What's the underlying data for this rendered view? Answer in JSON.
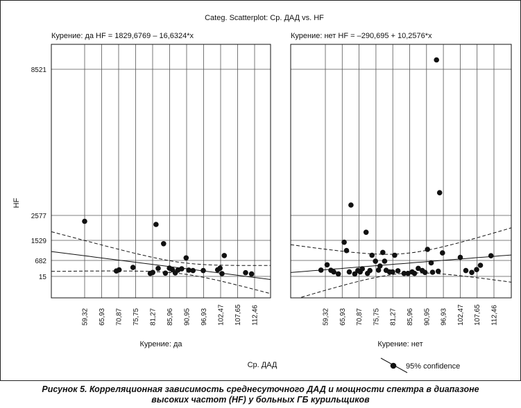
{
  "chart_data": {
    "type": "scatter",
    "title": "Categ. Scatterplot: Ср. ДАД vs. HF",
    "xlabel": "Ср. ДАД",
    "ylabel": "HF",
    "y_ticks": [
      "8521",
      "2577",
      "1529",
      "682",
      "15"
    ],
    "y_tick_values": [
      8521,
      2577,
      1529,
      682,
      15
    ],
    "x_ticks": [
      "59,32",
      "65,93",
      "70,87",
      "75,75",
      "81,27",
      "85,96",
      "90,95",
      "96,93",
      "102,47",
      "107,65",
      "112,46"
    ],
    "legend": "95% confidence",
    "grid": true,
    "panels": [
      {
        "header": "Курение: да HF = 1829,6769 – 16,6324*x",
        "category": "Курение: да",
        "intercept": 1829.6769,
        "slope": -16.6324,
        "points": [
          [
            59.32,
            2330
          ],
          [
            70.2,
            240
          ],
          [
            71.0,
            290
          ],
          [
            75.0,
            390
          ],
          [
            80.5,
            140
          ],
          [
            81.3,
            180
          ],
          [
            82.2,
            2200
          ],
          [
            82.8,
            350
          ],
          [
            84.3,
            1390
          ],
          [
            84.8,
            150
          ],
          [
            85.9,
            360
          ],
          [
            86.8,
            290
          ],
          [
            87.6,
            160
          ],
          [
            88.4,
            280
          ],
          [
            89.5,
            330
          ],
          [
            90.8,
            790
          ],
          [
            91.7,
            280
          ],
          [
            93.2,
            260
          ],
          [
            96.8,
            260
          ],
          [
            101.5,
            290
          ],
          [
            102.3,
            360
          ],
          [
            102.9,
            130
          ],
          [
            103.6,
            890
          ],
          [
            109.9,
            170
          ],
          [
            111.6,
            120
          ]
        ]
      },
      {
        "header": "Курение: нет HF = –290,695 + 10,2576*x",
        "category": "Курение: нет",
        "intercept": -290.695,
        "slope": 10.2576,
        "points": [
          [
            57.6,
            280
          ],
          [
            60.0,
            500
          ],
          [
            61.5,
            270
          ],
          [
            62.6,
            200
          ],
          [
            64.4,
            120
          ],
          [
            66.5,
            1450
          ],
          [
            67.2,
            1100
          ],
          [
            68.5,
            3000
          ],
          [
            68.0,
            200
          ],
          [
            69.6,
            120
          ],
          [
            70.5,
            260
          ],
          [
            71.2,
            200
          ],
          [
            71.8,
            330
          ],
          [
            72.9,
            1870
          ],
          [
            73.3,
            140
          ],
          [
            74.0,
            260
          ],
          [
            74.6,
            900
          ],
          [
            75.6,
            650
          ],
          [
            76.6,
            280
          ],
          [
            77.1,
            450
          ],
          [
            78.0,
            1020
          ],
          [
            78.6,
            650
          ],
          [
            79.1,
            270
          ],
          [
            80.2,
            200
          ],
          [
            81.2,
            200
          ],
          [
            81.8,
            900
          ],
          [
            82.7,
            250
          ],
          [
            84.4,
            140
          ],
          [
            85.5,
            140
          ],
          [
            86.7,
            200
          ],
          [
            87.4,
            140
          ],
          [
            88.5,
            350
          ],
          [
            89.7,
            260
          ],
          [
            90.5,
            180
          ],
          [
            91.3,
            1150
          ],
          [
            92.6,
            580
          ],
          [
            93.1,
            190
          ],
          [
            94.5,
            8900
          ],
          [
            95.1,
            230
          ],
          [
            95.6,
            3500
          ],
          [
            96.6,
            1000
          ],
          [
            102.5,
            810
          ],
          [
            104.2,
            260
          ],
          [
            106.0,
            180
          ],
          [
            107.5,
            300
          ],
          [
            108.6,
            480
          ],
          [
            111.6,
            880
          ]
        ]
      }
    ]
  },
  "caption": {
    "line1": "Рисунок 5. Корреляционная зависимость среднесуточного ДАД и мощности спектра в диапазоне",
    "line2": "высоких частот (HF) у больных ГБ курильщиков"
  },
  "colors": {
    "point": "#111111",
    "grid": "#555555",
    "line": "#111111"
  }
}
